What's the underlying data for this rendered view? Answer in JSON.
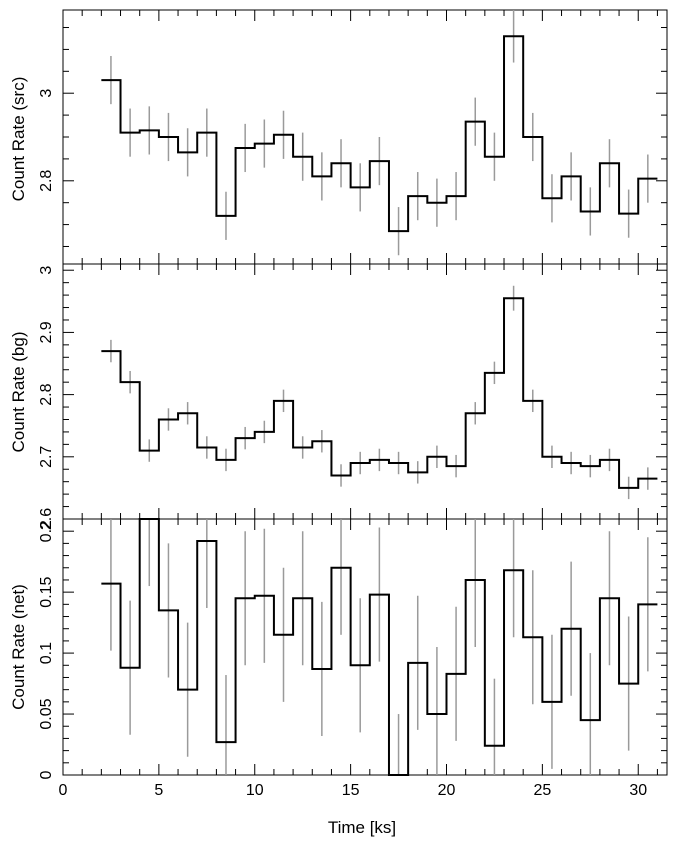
{
  "chart_data": [
    {
      "type": "line",
      "ylabel": "Count Rate (src)",
      "xlim": [
        0,
        31.5
      ],
      "ylim": [
        2.61,
        3.19
      ],
      "yticks": [
        2.8,
        3
      ],
      "yminor": 0.05,
      "x": [
        2.5,
        3.5,
        4.5,
        5.5,
        6.5,
        7.5,
        8.5,
        9.5,
        10.5,
        11.5,
        12.5,
        13.5,
        14.5,
        15.5,
        16.5,
        17.5,
        18.5,
        19.5,
        20.5,
        21.5,
        22.5,
        23.5,
        24.5,
        25.5,
        26.5,
        27.5,
        28.5,
        29.5,
        30.5
      ],
      "y": [
        3.03,
        2.91,
        2.915,
        2.9,
        2.865,
        2.91,
        2.72,
        2.875,
        2.885,
        2.905,
        2.855,
        2.81,
        2.84,
        2.785,
        2.845,
        2.685,
        2.765,
        2.75,
        2.765,
        2.935,
        2.855,
        3.13,
        2.9,
        2.76,
        2.81,
        2.73,
        2.84,
        2.725,
        2.805
      ],
      "yerr": [
        0.055,
        0.055,
        0.055,
        0.055,
        0.055,
        0.055,
        0.055,
        0.055,
        0.055,
        0.055,
        0.055,
        0.055,
        0.055,
        0.055,
        0.055,
        0.055,
        0.055,
        0.055,
        0.055,
        0.055,
        0.055,
        0.06,
        0.055,
        0.055,
        0.055,
        0.055,
        0.055,
        0.055,
        0.055
      ]
    },
    {
      "type": "line",
      "ylabel": "Count Rate (bg)",
      "xlim": [
        0,
        31.5
      ],
      "ylim": [
        2.6,
        3.01
      ],
      "yticks": [
        2.6,
        2.7,
        2.8,
        2.9,
        3
      ],
      "yminor": 0.02,
      "x": [
        2.5,
        3.5,
        4.5,
        5.5,
        6.5,
        7.5,
        8.5,
        9.5,
        10.5,
        11.5,
        12.5,
        13.5,
        14.5,
        15.5,
        16.5,
        17.5,
        18.5,
        19.5,
        20.5,
        21.5,
        22.5,
        23.5,
        24.5,
        25.5,
        26.5,
        27.5,
        28.5,
        29.5,
        30.5
      ],
      "y": [
        2.87,
        2.82,
        2.71,
        2.76,
        2.77,
        2.715,
        2.695,
        2.73,
        2.74,
        2.79,
        2.715,
        2.725,
        2.67,
        2.69,
        2.695,
        2.69,
        2.675,
        2.7,
        2.685,
        2.77,
        2.835,
        2.955,
        2.79,
        2.7,
        2.69,
        2.685,
        2.695,
        2.65,
        2.665
      ],
      "yerr": [
        0.018,
        0.018,
        0.018,
        0.018,
        0.018,
        0.018,
        0.018,
        0.018,
        0.018,
        0.018,
        0.018,
        0.018,
        0.018,
        0.018,
        0.018,
        0.018,
        0.018,
        0.018,
        0.018,
        0.018,
        0.018,
        0.02,
        0.018,
        0.018,
        0.018,
        0.018,
        0.018,
        0.018,
        0.018
      ]
    },
    {
      "type": "line",
      "ylabel": "Count Rate (net)",
      "xlabel": "Time [ks]",
      "xlim": [
        0,
        31.5
      ],
      "ylim": [
        0,
        0.21
      ],
      "yticks": [
        0,
        0.05,
        0.1,
        0.15,
        0.2
      ],
      "yminor": 0.01,
      "xticks": [
        0,
        5,
        10,
        15,
        20,
        25,
        30
      ],
      "xminor": 1,
      "x": [
        2.5,
        3.5,
        4.5,
        5.5,
        6.5,
        7.5,
        8.5,
        9.5,
        10.5,
        11.5,
        12.5,
        13.5,
        14.5,
        15.5,
        16.5,
        17.5,
        18.5,
        19.5,
        20.5,
        21.5,
        22.5,
        23.5,
        24.5,
        25.5,
        26.5,
        27.5,
        28.5,
        29.5,
        30.5
      ],
      "y": [
        0.157,
        0.088,
        0.21,
        0.135,
        0.07,
        0.192,
        0.027,
        0.145,
        0.147,
        0.115,
        0.145,
        0.087,
        0.17,
        0.09,
        0.148,
        -0.005,
        0.092,
        0.05,
        0.083,
        0.16,
        0.024,
        0.168,
        0.113,
        0.06,
        0.12,
        0.045,
        0.145,
        0.075,
        0.14
      ]
    }
  ],
  "error_bars": {
    "net_half_width": 0.055
  },
  "colors": {
    "step": "#000000",
    "error_bar": "#9a9a9a"
  }
}
